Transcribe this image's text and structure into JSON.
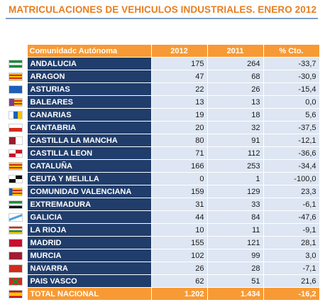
{
  "title": "MATRICULACIONES DE VEHICULOS INDUSTRIALES. ENERO 2012",
  "columns": [
    "Comunidadc Autónoma",
    "2012",
    "2011",
    "% Cto."
  ],
  "rows": [
    {
      "name": "ANDALUCIA",
      "y2012": "175",
      "y2011": "264",
      "pct": "-33,7",
      "flag": "andalucia-flag-icon"
    },
    {
      "name": "ARAGON",
      "y2012": "47",
      "y2011": "68",
      "pct": "-30,9",
      "flag": "aragon-flag-icon"
    },
    {
      "name": "ASTURIAS",
      "y2012": "22",
      "y2011": "26",
      "pct": "-15,4",
      "flag": "asturias-flag-icon"
    },
    {
      "name": "BALEARES",
      "y2012": "13",
      "y2011": "13",
      "pct": "0,0",
      "flag": "baleares-flag-icon"
    },
    {
      "name": "CANARIAS",
      "y2012": "19",
      "y2011": "18",
      "pct": "5,6",
      "flag": "canarias-flag-icon"
    },
    {
      "name": "CANTABRIA",
      "y2012": "20",
      "y2011": "32",
      "pct": "-37,5",
      "flag": "cantabria-flag-icon"
    },
    {
      "name": "CASTILLA LA MANCHA",
      "y2012": "80",
      "y2011": "91",
      "pct": "-12,1",
      "flag": "castilla-la-mancha-flag-icon"
    },
    {
      "name": "CASTILLA LEON",
      "y2012": "71",
      "y2011": "112",
      "pct": "-36,6",
      "flag": "castilla-leon-flag-icon"
    },
    {
      "name": "CATALUÑA",
      "y2012": "166",
      "y2011": "253",
      "pct": "-34,4",
      "flag": "cataluna-flag-icon"
    },
    {
      "name": "CEUTA Y MELILLA",
      "y2012": "0",
      "y2011": "1",
      "pct": "-100,0",
      "flag": "ceuta-melilla-flag-icon"
    },
    {
      "name": "COMUNIDAD VALENCIANA",
      "y2012": "159",
      "y2011": "129",
      "pct": "23,3",
      "flag": "valencia-flag-icon"
    },
    {
      "name": "EXTREMADURA",
      "y2012": "31",
      "y2011": "33",
      "pct": "-6,1",
      "flag": "extremadura-flag-icon"
    },
    {
      "name": "GALICIA",
      "y2012": "44",
      "y2011": "84",
      "pct": "-47,6",
      "flag": "galicia-flag-icon"
    },
    {
      "name": "LA RIOJA",
      "y2012": "10",
      "y2011": "11",
      "pct": "-9,1",
      "flag": "la-rioja-flag-icon"
    },
    {
      "name": "MADRID",
      "y2012": "155",
      "y2011": "121",
      "pct": "28,1",
      "flag": "madrid-flag-icon"
    },
    {
      "name": "MURCIA",
      "y2012": "102",
      "y2011": "99",
      "pct": "3,0",
      "flag": "murcia-flag-icon"
    },
    {
      "name": "NAVARRA",
      "y2012": "26",
      "y2011": "28",
      "pct": "-7,1",
      "flag": "navarra-flag-icon"
    },
    {
      "name": "PAIS VASCO",
      "y2012": "62",
      "y2011": "51",
      "pct": "21,6",
      "flag": "pais-vasco-flag-icon"
    }
  ],
  "total": {
    "name": "TOTAL NACIONAL",
    "y2012": "1.202",
    "y2011": "1.434",
    "pct": "-16,2",
    "flag": "spain-flag-icon"
  },
  "colors": {
    "header_orange": "#f79a35",
    "title_orange": "#e87d1e",
    "region_navy": "#203d6b",
    "cell_blue": "#dde6f2"
  }
}
